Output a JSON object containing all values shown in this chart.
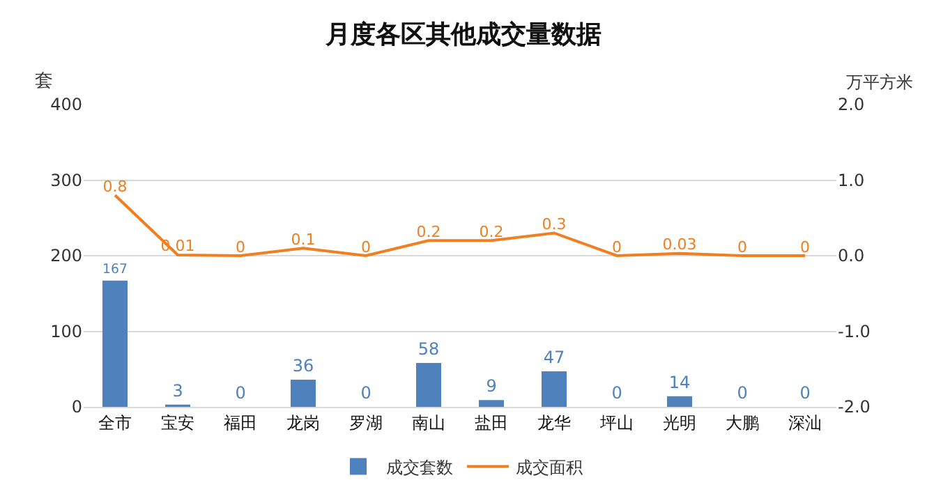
{
  "chart_data": {
    "type": "bar",
    "title": "月度各区其他成交量数据",
    "ylabel": "套",
    "y2label": "万平方米",
    "categories": [
      "全市",
      "宝安",
      "福田",
      "龙岗",
      "罗湖",
      "南山",
      "盐田",
      "龙华",
      "坪山",
      "光明",
      "大鹏",
      "深汕"
    ],
    "series": [
      {
        "name": "成交套数",
        "color": "#4f81bd",
        "values": [
          167,
          3,
          0,
          36,
          0,
          58,
          9,
          47,
          0,
          14,
          0,
          0
        ]
      },
      {
        "name": "成交面积",
        "type": "line",
        "axis": "y2",
        "color": "#f07f21",
        "values": [
          0.8,
          0.01,
          0,
          0.1,
          0,
          0.2,
          0.2,
          0.3,
          0,
          0.03,
          0,
          0
        ]
      }
    ],
    "ylim": [
      0,
      400
    ],
    "yticks": [
      0,
      100,
      200,
      300,
      400
    ],
    "y2lim": [
      -2,
      2
    ],
    "y2ticks": [
      {
        "value": -2,
        "label": "-2.0"
      },
      {
        "value": -1,
        "label": "-1.0"
      },
      {
        "value": 0,
        "label": "0.0"
      },
      {
        "value": 1,
        "label": "1.0"
      },
      {
        "value": 2,
        "label": "2.0"
      }
    ],
    "grid": "y",
    "legend": "bottom",
    "data_labels": true,
    "marker": "none",
    "line_style": "solid"
  }
}
